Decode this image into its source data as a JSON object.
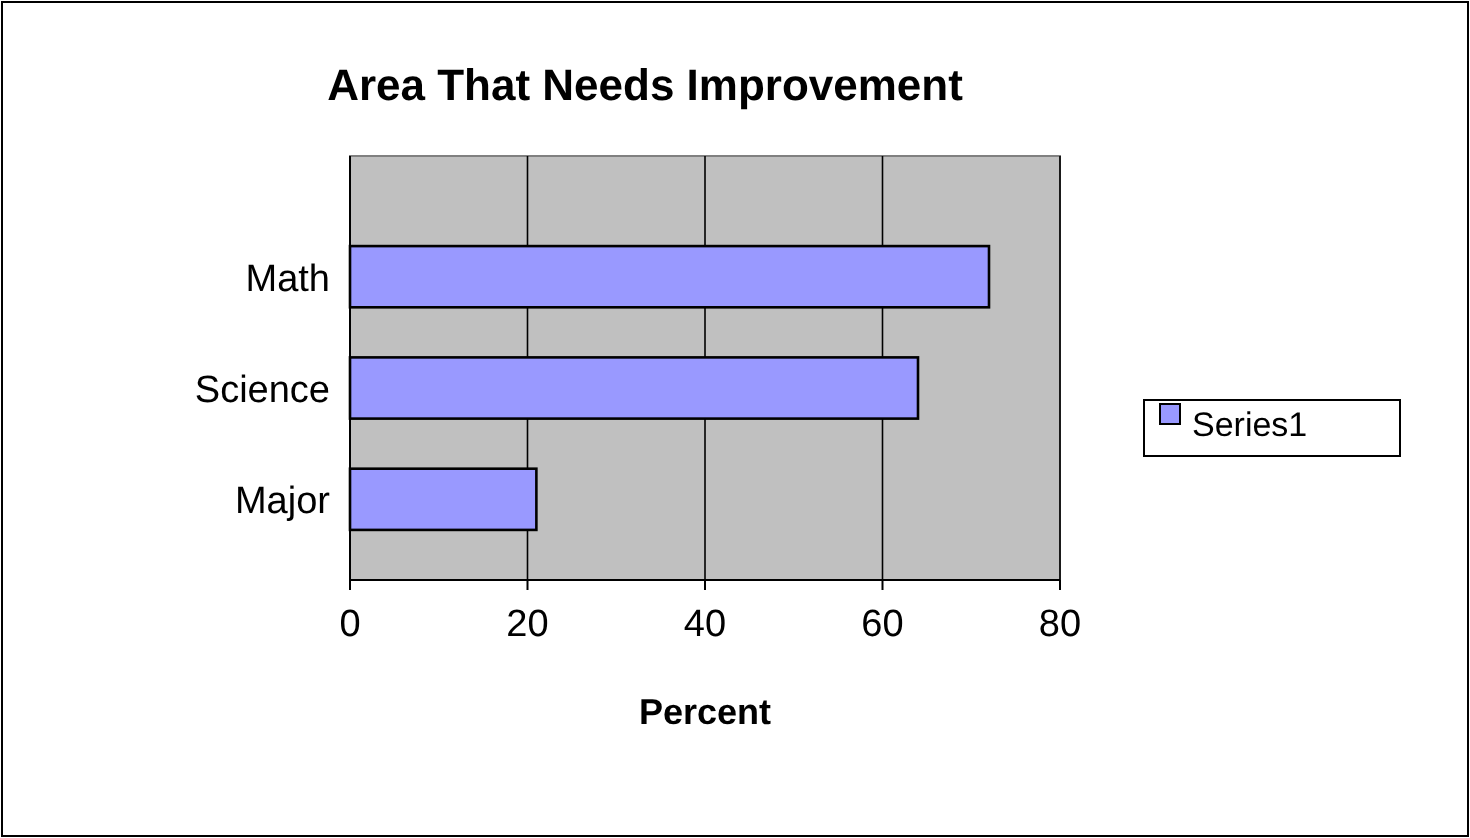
{
  "chart_data": {
    "type": "bar",
    "orientation": "horizontal",
    "title": "Area That Needs Improvement",
    "xlabel": "Percent",
    "categories": [
      "Math",
      "Science",
      "Major"
    ],
    "series": [
      {
        "name": "Series1",
        "color": "#9999ff",
        "values": [
          72,
          64,
          21
        ]
      }
    ],
    "xlim": [
      0,
      80
    ],
    "xticks": [
      0,
      20,
      40,
      60,
      80
    ],
    "grid": "x",
    "legend": "right"
  }
}
